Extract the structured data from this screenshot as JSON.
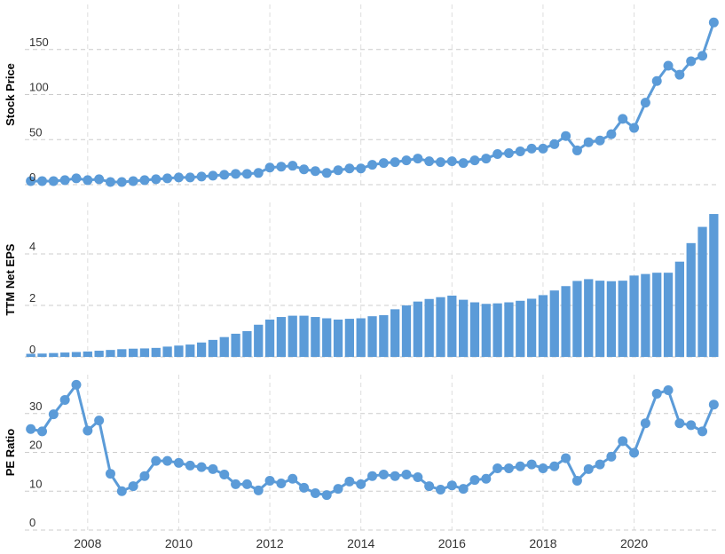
{
  "chart_data": [
    {
      "type": "line",
      "ylabel": "Stock Price",
      "color": "#5b9bd8",
      "grid": true,
      "xlim": [
        2006.62,
        2021.86
      ],
      "xticks": [
        2008,
        2010,
        2012,
        2014,
        2016,
        2018,
        2020
      ],
      "ylim": [
        0,
        200
      ],
      "yticks": [
        0,
        50,
        100,
        150
      ],
      "x": [
        2006.75,
        2007,
        2007.25,
        2007.5,
        2007.75,
        2008,
        2008.25,
        2008.5,
        2008.75,
        2009,
        2009.25,
        2009.5,
        2009.75,
        2010,
        2010.25,
        2010.5,
        2010.75,
        2011,
        2011.25,
        2011.5,
        2011.75,
        2012,
        2012.25,
        2012.5,
        2012.75,
        2013,
        2013.25,
        2013.5,
        2013.75,
        2014,
        2014.25,
        2014.5,
        2014.75,
        2015,
        2015.25,
        2015.5,
        2015.75,
        2016,
        2016.25,
        2016.5,
        2016.75,
        2017,
        2017.25,
        2017.5,
        2017.75,
        2018,
        2018.25,
        2018.5,
        2018.75,
        2019,
        2019.25,
        2019.5,
        2019.75,
        2020,
        2020.25,
        2020.5,
        2020.75,
        2021,
        2021.25,
        2021.5,
        2021.75
      ],
      "values": [
        4,
        4,
        4,
        5,
        7,
        5,
        6,
        3,
        3,
        4,
        5,
        6,
        7,
        8,
        8,
        9,
        10,
        11,
        12,
        12,
        13,
        19,
        20,
        21,
        17,
        15,
        13,
        16,
        18,
        18,
        22,
        24,
        25,
        27,
        29,
        26,
        25,
        26,
        24,
        27,
        29,
        34,
        35,
        37,
        40,
        40,
        45,
        54,
        38,
        47,
        49,
        56,
        73,
        63,
        91,
        115,
        132,
        122,
        137,
        143,
        180
      ]
    },
    {
      "type": "bar",
      "ylabel": "TTM Net EPS",
      "color": "#5b9bd8",
      "grid": true,
      "xlim": [
        2006.62,
        2021.86
      ],
      "xticks": [
        2008,
        2010,
        2012,
        2014,
        2016,
        2018,
        2020
      ],
      "ylim": [
        0,
        6
      ],
      "yticks": [
        0,
        2,
        4
      ],
      "x": [
        2006.75,
        2007,
        2007.25,
        2007.5,
        2007.75,
        2008,
        2008.25,
        2008.5,
        2008.75,
        2009,
        2009.25,
        2009.5,
        2009.75,
        2010,
        2010.25,
        2010.5,
        2010.75,
        2011,
        2011.25,
        2011.5,
        2011.75,
        2012,
        2012.25,
        2012.5,
        2012.75,
        2013,
        2013.25,
        2013.5,
        2013.75,
        2014,
        2014.25,
        2014.5,
        2014.75,
        2015,
        2015.25,
        2015.5,
        2015.75,
        2016,
        2016.25,
        2016.5,
        2016.75,
        2017,
        2017.25,
        2017.5,
        2017.75,
        2018,
        2018.25,
        2018.5,
        2018.75,
        2019,
        2019.25,
        2019.5,
        2019.75,
        2020,
        2020.25,
        2020.5,
        2020.75,
        2021,
        2021.25,
        2021.5,
        2021.75
      ],
      "values": [
        0.12,
        0.13,
        0.15,
        0.17,
        0.19,
        0.21,
        0.24,
        0.27,
        0.3,
        0.32,
        0.33,
        0.35,
        0.4,
        0.44,
        0.48,
        0.56,
        0.66,
        0.77,
        0.9,
        1.0,
        1.25,
        1.45,
        1.55,
        1.6,
        1.6,
        1.55,
        1.5,
        1.45,
        1.48,
        1.5,
        1.58,
        1.62,
        1.85,
        2.0,
        2.15,
        2.25,
        2.32,
        2.38,
        2.22,
        2.12,
        2.06,
        2.08,
        2.12,
        2.18,
        2.26,
        2.4,
        2.58,
        2.75,
        2.95,
        3.02,
        2.96,
        2.94,
        2.96,
        3.16,
        3.22,
        3.27,
        3.27,
        3.7,
        4.42,
        5.05,
        5.55
      ]
    },
    {
      "type": "line",
      "ylabel": "PE Ratio",
      "color": "#5b9bd8",
      "grid": true,
      "xlim": [
        2006.62,
        2021.86
      ],
      "xticks": [
        2008,
        2010,
        2012,
        2014,
        2016,
        2018,
        2020
      ],
      "ylim": [
        0,
        40
      ],
      "yticks": [
        0,
        10,
        20,
        30
      ],
      "x": [
        2006.75,
        2007,
        2007.25,
        2007.5,
        2007.75,
        2008,
        2008.25,
        2008.5,
        2008.75,
        2009,
        2009.25,
        2009.5,
        2009.75,
        2010,
        2010.25,
        2010.5,
        2010.75,
        2011,
        2011.25,
        2011.5,
        2011.75,
        2012,
        2012.25,
        2012.5,
        2012.75,
        2013,
        2013.25,
        2013.5,
        2013.75,
        2014,
        2014.25,
        2014.5,
        2014.75,
        2015,
        2015.25,
        2015.5,
        2015.75,
        2016,
        2016.25,
        2016.5,
        2016.75,
        2017,
        2017.25,
        2017.5,
        2017.75,
        2018,
        2018.25,
        2018.5,
        2018.75,
        2019,
        2019.25,
        2019.5,
        2019.75,
        2020,
        2020.25,
        2020.5,
        2020.75,
        2021,
        2021.25,
        2021.5,
        2021.75
      ],
      "values": [
        26,
        25.4,
        29.8,
        33.5,
        37.4,
        25.6,
        28.2,
        14.5,
        10,
        11.3,
        13.9,
        17.8,
        17.8,
        17.3,
        16.6,
        16.2,
        15.7,
        14.3,
        11.8,
        11.8,
        10.2,
        12.7,
        12,
        13.2,
        10.9,
        9.5,
        9,
        10.6,
        12.5,
        11.8,
        13.9,
        14.3,
        13.9,
        14.3,
        13.6,
        11.3,
        10.4,
        11.5,
        10.6,
        12.9,
        13.2,
        15.9,
        15.9,
        16.4,
        16.9,
        15.9,
        16.4,
        18.5,
        12.7,
        15.7,
        16.9,
        18.9,
        22.9,
        19.9,
        27.5,
        35.1,
        36,
        27.5,
        27,
        25.4,
        32.3
      ]
    }
  ]
}
